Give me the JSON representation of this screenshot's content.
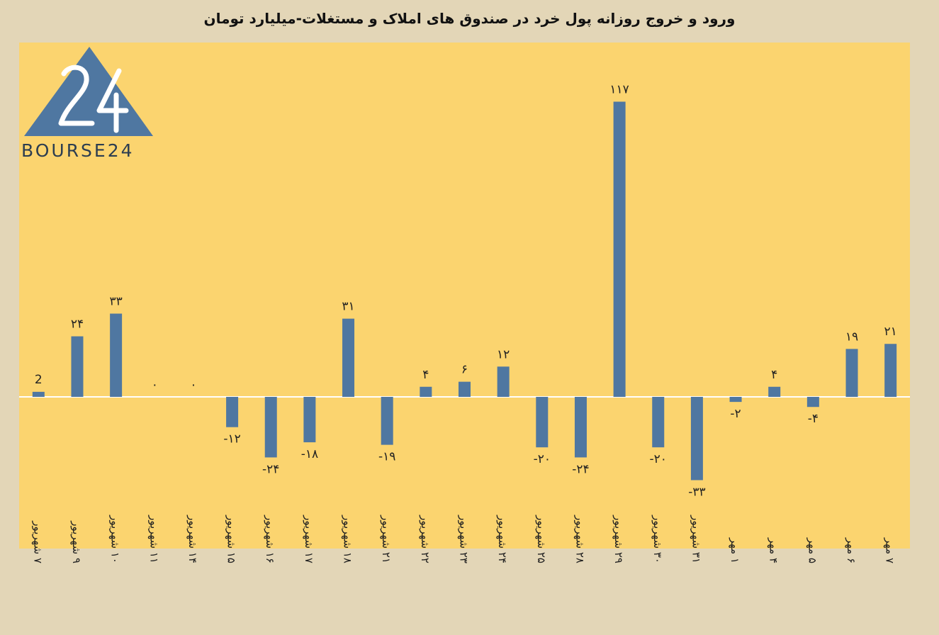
{
  "title": "ورود و خروج روزانه پول خرد در صندوق های املاک و مستغلات-میلیارد تومان",
  "logo": {
    "text": "BOURSE24",
    "mark": "24"
  },
  "colors": {
    "background": "#e3d6b7",
    "plot": "#fbd46f",
    "bar": "#4f77a1",
    "zero_line": "#ffffff"
  },
  "chart_data": {
    "type": "bar",
    "categories": [
      "۷ شهریور",
      "۹ شهریور",
      "۱۰ شهریور",
      "۱۱ شهریور",
      "۱۴ شهریور",
      "۱۵ شهریور",
      "۱۶ شهریور",
      "۱۷ شهریور",
      "۱۸ شهریور",
      "۲۱ شهریور",
      "۲۲ شهریور",
      "۲۳ شهریور",
      "۲۴ شهریور",
      "۲۵ شهریور",
      "۲۸ شهریور",
      "۲۹ شهریور",
      "۳۰ شهریور",
      "۳۱ شهریور",
      "۱ مهر",
      "۴ مهر",
      "۵ مهر",
      "۶ مهر",
      "۷ مهر"
    ],
    "values": [
      2,
      24,
      33,
      0,
      0,
      -12,
      -24,
      -18,
      31,
      -19,
      4,
      6,
      12,
      -20,
      -24,
      117,
      -20,
      -33,
      -2,
      4,
      -4,
      19,
      21
    ],
    "data_labels": [
      "2",
      "۲۴",
      "۳۳",
      "۰",
      "۰",
      "-۱۲",
      "-۲۴",
      "-۱۸",
      "۳۱",
      "-۱۹",
      "۴",
      "۶",
      "۱۲",
      "-۲۰",
      "-۲۴",
      "۱۱۷",
      "-۲۰",
      "-۳۳",
      "-۲",
      "۴",
      "-۴",
      "۱۹",
      "۲۱"
    ],
    "title": "ورود و خروج روزانه پول خرد در صندوق های املاک و مستغلات-میلیارد تومان",
    "xlabel": "",
    "ylabel": "",
    "grid": false,
    "legend": "none"
  }
}
